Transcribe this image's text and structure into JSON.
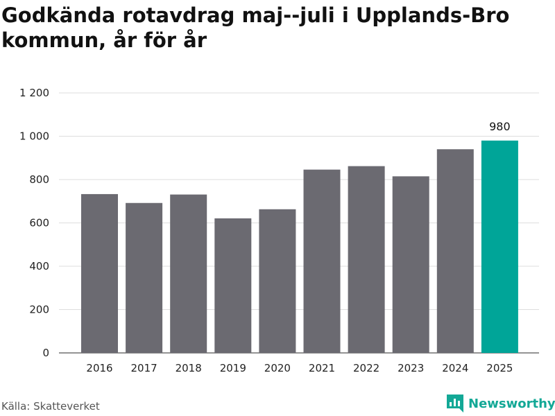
{
  "chart_data": {
    "type": "bar",
    "title": "Godkända rotavdrag maj--juli i Upplands-Bro kommun, år för år",
    "categories": [
      "2016",
      "2017",
      "2018",
      "2019",
      "2020",
      "2021",
      "2022",
      "2023",
      "2024",
      "2025"
    ],
    "values": [
      733,
      692,
      731,
      621,
      663,
      846,
      862,
      815,
      940,
      980
    ],
    "highlight_index": 9,
    "data_labels": [
      {
        "index": 9,
        "text": "980"
      }
    ],
    "yticks": [
      0,
      200,
      400,
      600,
      800,
      1000,
      1200
    ],
    "ytick_labels": [
      "0",
      "200",
      "400",
      "600",
      "800",
      "1 000",
      "1 200"
    ],
    "ylim": [
      0,
      1200
    ],
    "grid": true,
    "colors": {
      "bar": "#6b6a71",
      "highlight": "#00a598",
      "grid": "#dddddd"
    }
  },
  "footer": {
    "source": "Källa: Skatteverket",
    "brand": "Newsworthy",
    "brand_icon": "bar-chart-icon",
    "brand_color": "#13a896"
  }
}
